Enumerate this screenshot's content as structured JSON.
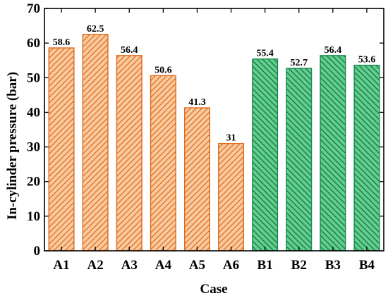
{
  "chart_data": {
    "type": "bar",
    "xlabel": "Case",
    "ylabel": "In-cylinder pressure (bar)",
    "ylim": [
      0,
      70
    ],
    "yticks": [
      0,
      10,
      20,
      30,
      40,
      50,
      60,
      70
    ],
    "grid": false,
    "categories": [
      "A1",
      "A2",
      "A3",
      "A4",
      "A5",
      "A6",
      "B1",
      "B2",
      "B3",
      "B4"
    ],
    "values": [
      58.6,
      62.5,
      56.4,
      50.6,
      41.3,
      31,
      55.4,
      52.7,
      56.4,
      53.6
    ],
    "value_labels": [
      "58.6",
      "62.5",
      "56.4",
      "50.6",
      "41.3",
      "31",
      "55.4",
      "52.7",
      "56.4",
      "53.6"
    ],
    "groups": [
      {
        "prefix": "A",
        "fill": "#f9caa0",
        "stroke": "#e06818",
        "hatch": "forward-diagonal"
      },
      {
        "prefix": "B",
        "fill": "#5fcf8f",
        "stroke": "#1a8a4a",
        "hatch": "backward-diagonal"
      }
    ]
  }
}
